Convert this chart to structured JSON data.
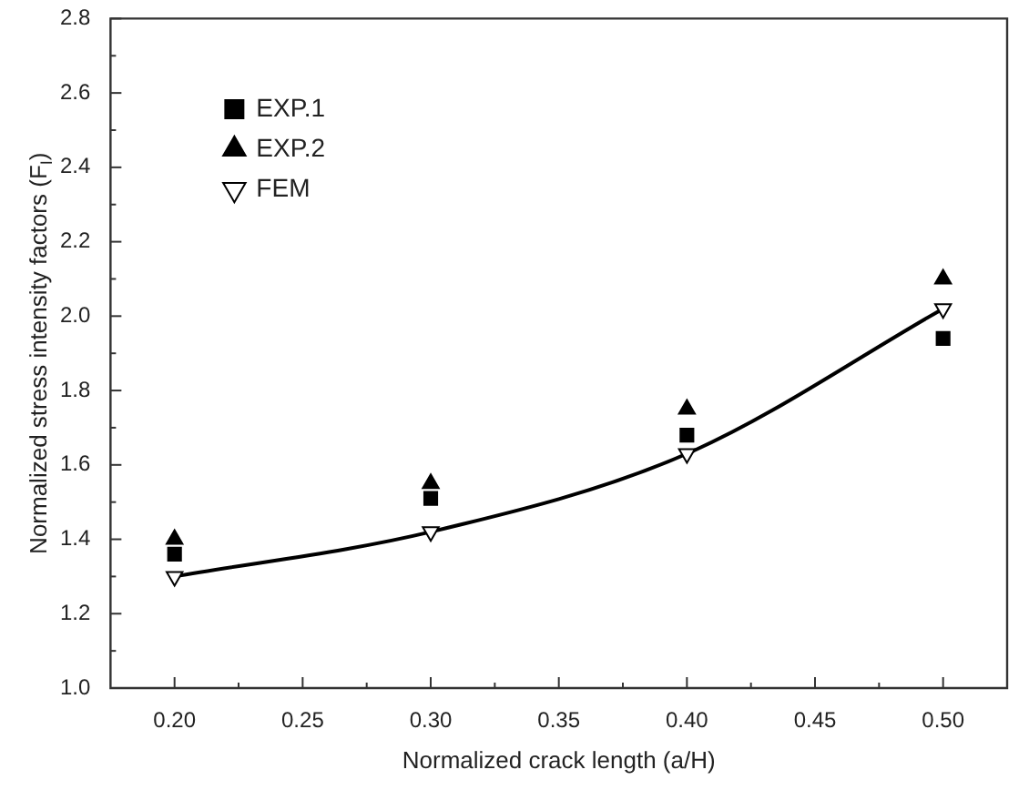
{
  "chart_data": {
    "type": "scatter",
    "xlabel": "Normalized crack length (a/H)",
    "ylabel": "Normalized stress intensity factors (F$_{I}$)",
    "x": [
      0.2,
      0.3,
      0.4,
      0.5
    ],
    "series": [
      {
        "name": "EXP.1",
        "color": "#000000",
        "type": "scatter",
        "marker": "square",
        "values": [
          1.36,
          1.51,
          1.68,
          1.94
        ]
      },
      {
        "name": "EXP.2",
        "color": "#000000",
        "type": "scatter",
        "marker": "triangle",
        "values": [
          1.4,
          1.55,
          1.75,
          2.1
        ]
      },
      {
        "name": "FEM",
        "color": "#000000",
        "type": "line",
        "marker": "triangle",
        "line_style": "solid",
        "values": [
          1.3,
          1.42,
          1.63,
          2.02
        ]
      }
    ],
    "xlim": [
      0.175,
      0.525
    ],
    "xticks": [
      {
        "value": 0.2,
        "label": "0.20"
      },
      {
        "value": 0.225,
        "label": null
      },
      {
        "value": 0.25,
        "label": "0.25"
      },
      {
        "value": 0.275,
        "label": null
      },
      {
        "value": 0.3,
        "label": "0.30"
      },
      {
        "value": 0.325,
        "label": null
      },
      {
        "value": 0.35,
        "label": "0.35"
      },
      {
        "value": 0.375,
        "label": null
      },
      {
        "value": 0.4,
        "label": "0.40"
      },
      {
        "value": 0.425,
        "label": null
      },
      {
        "value": 0.45,
        "label": "0.45"
      },
      {
        "value": 0.475,
        "label": null
      },
      {
        "value": 0.5,
        "label": "0.50"
      }
    ],
    "ylim": [
      1.0,
      2.8
    ],
    "yticks": [
      {
        "value": 1.0,
        "label": "1.0"
      },
      {
        "value": 1.1,
        "label": null
      },
      {
        "value": 1.2,
        "label": "1.2"
      },
      {
        "value": 1.3,
        "label": null
      },
      {
        "value": 1.4,
        "label": "1.4"
      },
      {
        "value": 1.5,
        "label": null
      },
      {
        "value": 1.6,
        "label": "1.6"
      },
      {
        "value": 1.7,
        "label": null
      },
      {
        "value": 1.8,
        "label": "1.8"
      },
      {
        "value": 1.9,
        "label": null
      },
      {
        "value": 2.0,
        "label": "2.0"
      },
      {
        "value": 2.1,
        "label": null
      },
      {
        "value": 2.2,
        "label": "2.2"
      },
      {
        "value": 2.3,
        "label": null
      },
      {
        "value": 2.4,
        "label": "2.4"
      },
      {
        "value": 2.5,
        "label": null
      },
      {
        "value": 2.6,
        "label": "2.6"
      },
      {
        "value": 2.7,
        "label": null
      },
      {
        "value": 2.8,
        "label": "2.8"
      }
    ],
    "grid": false,
    "legend": "top left"
  }
}
